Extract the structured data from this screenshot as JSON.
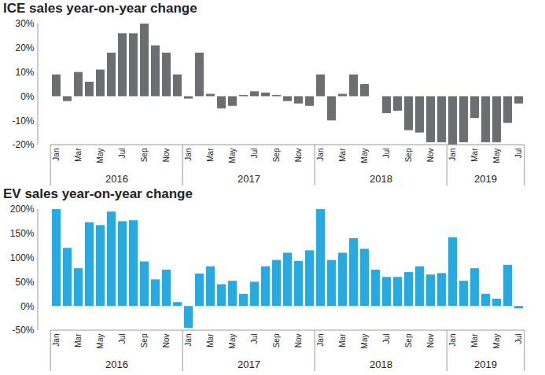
{
  "chart_data": [
    {
      "type": "bar",
      "title": "ICE sales year-on-year change",
      "categories": [
        "Jan",
        null,
        "Mar",
        null,
        "May",
        null,
        "Jul",
        null,
        "Sep",
        null,
        "Nov",
        null,
        "Jan",
        null,
        "Mar",
        null,
        "May",
        null,
        "Jul",
        null,
        "Sep",
        null,
        "Nov",
        null,
        "Jan",
        null,
        "Mar",
        null,
        "May",
        null,
        "Jul",
        null,
        "Sep",
        null,
        "Nov",
        null,
        "Jan",
        null,
        "Mar",
        null,
        "May",
        null,
        "Jul"
      ],
      "year_labels": [
        "2016",
        "2017",
        "2018",
        "2019"
      ],
      "values": [
        9,
        -2,
        10,
        6,
        11,
        18,
        26,
        26,
        30,
        21,
        18,
        9,
        -1,
        18,
        1,
        -5,
        -4,
        0.5,
        2,
        1.5,
        0.5,
        -2,
        -3,
        -4,
        9,
        -10,
        1,
        9,
        5,
        0,
        -7,
        -6,
        -14,
        -15,
        -19,
        -19,
        -20,
        -19,
        -9,
        -19,
        -19,
        -11,
        -3
      ],
      "color": "#6d6e71",
      "ylim": [
        -20,
        30
      ],
      "yticks": [
        {
          "value": -20,
          "label": "-20%"
        },
        {
          "value": -10,
          "label": "-10%"
        },
        {
          "value": 0,
          "label": "0%"
        },
        {
          "value": 10,
          "label": "10%"
        },
        {
          "value": 20,
          "label": "20%"
        },
        {
          "value": 30,
          "label": "30%"
        }
      ],
      "grid": false
    },
    {
      "type": "bar",
      "title": "EV sales year-on-year change",
      "categories": [
        "Jan",
        null,
        "Mar",
        null,
        "May",
        null,
        "Jul",
        null,
        "Sep",
        null,
        "Nov",
        null,
        "Jan",
        null,
        "Mar",
        null,
        "May",
        null,
        "Jul",
        null,
        "Sep",
        null,
        "Nov",
        null,
        "Jan",
        null,
        "Mar",
        null,
        "May",
        null,
        "Jul",
        null,
        "Sep",
        null,
        "Nov",
        null,
        "Jan",
        null,
        "Mar",
        null,
        "May",
        null,
        "Jul"
      ],
      "year_labels": [
        "2016",
        "2017",
        "2018",
        "2019"
      ],
      "values": [
        200,
        120,
        78,
        173,
        167,
        195,
        175,
        177,
        92,
        55,
        75,
        8,
        -45,
        67,
        82,
        45,
        52,
        25,
        50,
        82,
        95,
        110,
        93,
        115,
        200,
        95,
        110,
        140,
        118,
        75,
        60,
        60,
        70,
        82,
        65,
        68,
        142,
        52,
        78,
        25,
        15,
        85,
        -5
      ],
      "color": "#29a9e0",
      "ylim": [
        -50,
        200
      ],
      "yticks": [
        {
          "value": -50,
          "label": "-50%"
        },
        {
          "value": 0,
          "label": "0%"
        },
        {
          "value": 50,
          "label": "50%"
        },
        {
          "value": 100,
          "label": "100%"
        },
        {
          "value": 150,
          "label": "150%"
        },
        {
          "value": 200,
          "label": "200%"
        }
      ],
      "grid": false
    }
  ]
}
